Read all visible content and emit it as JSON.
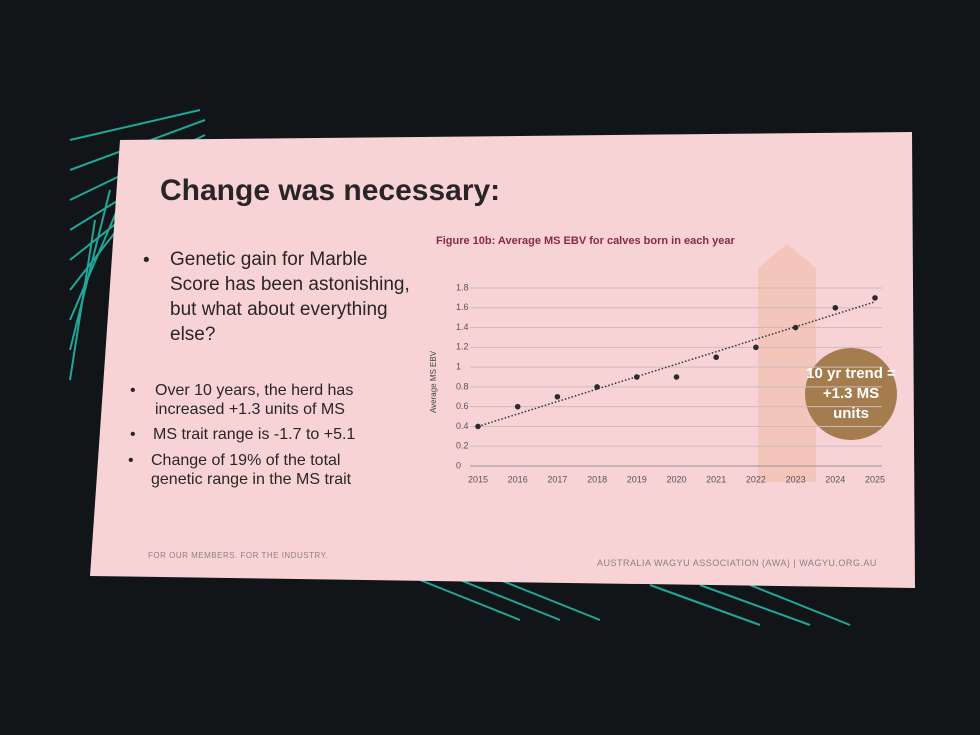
{
  "slide": {
    "title": "Change was necessary:",
    "main_bullet": "Genetic gain for Marble Score has been astonishing, but what about everything else?",
    "bullets": [
      "Over 10 years, the herd has increased +1.3 units of MS",
      "MS trait range is -1.7 to +5.1",
      "Change of 19% of the total genetic range in the MS trait"
    ],
    "footer_left": "FOR OUR MEMBERS. FOR THE INDUSTRY.",
    "footer_right": "AUSTRALIA WAGYU ASSOCIATION (AWA) | WAGYU.ORG.AU"
  },
  "chart_data": {
    "type": "scatter",
    "title": "Figure 10b:  Average MS EBV for calves born in each year",
    "y_label": "Average MS EBV",
    "x": [
      2015,
      2016,
      2017,
      2018,
      2019,
      2020,
      2021,
      2022,
      2023,
      2024,
      2025
    ],
    "values": [
      0.4,
      0.6,
      0.7,
      0.8,
      0.9,
      0.9,
      1.1,
      1.2,
      1.4,
      1.6,
      1.7
    ],
    "color": "#2b2b2b",
    "trendline": {
      "x": [
        2015,
        2025
      ],
      "values": [
        0.4,
        1.66
      ]
    },
    "xlim": [
      2015,
      2025
    ],
    "xticks": [
      2015,
      2016,
      2017,
      2018,
      2019,
      2020,
      2021,
      2022,
      2023,
      2024,
      2025
    ],
    "ylim": [
      0,
      1.8
    ],
    "yticks": [
      0,
      0.2,
      0.4,
      0.6,
      0.8,
      1,
      1.2,
      1.4,
      1.6,
      1.8
    ],
    "grid": true,
    "annotation": "10 yr trend = +1.3 MS units"
  }
}
